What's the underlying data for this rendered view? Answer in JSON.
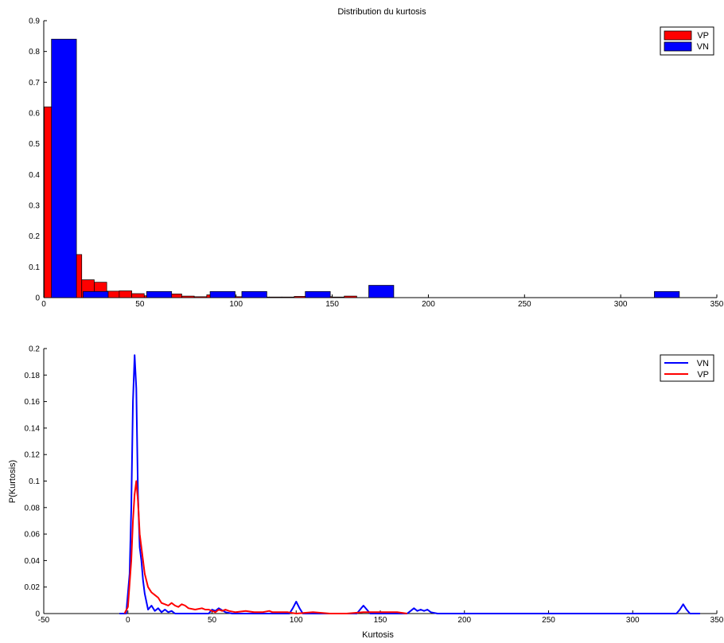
{
  "chart_data": [
    {
      "type": "bar",
      "title": "Distribution du kurtosis",
      "xlabel": "",
      "ylabel": "",
      "xlim": [
        0,
        350
      ],
      "ylim": [
        0,
        0.9
      ],
      "xticks": [
        0,
        50,
        100,
        150,
        200,
        250,
        300,
        350
      ],
      "yticks": [
        0,
        0.1,
        0.2,
        0.3,
        0.4,
        0.5,
        0.6,
        0.7,
        0.8,
        0.9
      ],
      "grid": false,
      "legend_position": "top-right",
      "series": [
        {
          "name": "VP",
          "color": "#ff0000",
          "bin_width": 6.5,
          "x": [
            3.5,
            10,
            16.5,
            23,
            29.5,
            36,
            42.5,
            49,
            55.5,
            62,
            68.5,
            75,
            81.5,
            88,
            94.5,
            101,
            107.5,
            114,
            120.5,
            127,
            133.5,
            140,
            146.5,
            153,
            159.5
          ],
          "values": [
            0.62,
            0.62,
            0.14,
            0.058,
            0.05,
            0.021,
            0.022,
            0.013,
            0.006,
            0.01,
            0.012,
            0.005,
            0.003,
            0.009,
            0.003,
            0.003,
            0.004,
            0.002,
            0.002,
            0.002,
            0.004,
            0.006,
            0.003,
            0.002,
            0.005
          ]
        },
        {
          "name": "VN",
          "color": "#0000ff",
          "bin_width": 13,
          "x": [
            10.5,
            27,
            43.5,
            60,
            76.5,
            93,
            109.5,
            126,
            142.5,
            159,
            175.5,
            192,
            208.5,
            225,
            241.5,
            258,
            274.5,
            291,
            307.5,
            324
          ],
          "values": [
            0.84,
            0.02,
            0,
            0.02,
            0,
            0.02,
            0.02,
            0,
            0.02,
            0,
            0.04,
            0,
            0,
            0,
            0,
            0,
            0,
            0,
            0,
            0.02
          ]
        }
      ]
    },
    {
      "type": "line",
      "title": "",
      "xlabel": "Kurtosis",
      "ylabel": "P(Kurtosis)",
      "xlim": [
        -50,
        350
      ],
      "ylim": [
        0,
        0.2
      ],
      "xticks": [
        -50,
        0,
        50,
        100,
        150,
        200,
        250,
        300,
        350
      ],
      "yticks": [
        0,
        0.02,
        0.04,
        0.06,
        0.08,
        0.1,
        0.12,
        0.14,
        0.16,
        0.18,
        0.2
      ],
      "grid": false,
      "legend_position": "top-right",
      "series": [
        {
          "name": "VN",
          "color": "#0000ff",
          "x": [
            -5,
            -1,
            1,
            2,
            3,
            4,
            5,
            6,
            7,
            8,
            9,
            10,
            12,
            14,
            16,
            18,
            20,
            22,
            24,
            26,
            28,
            30,
            40,
            48,
            50,
            52,
            54,
            58,
            62,
            70,
            96,
            98,
            100,
            102,
            104,
            136,
            138,
            140,
            142,
            144,
            166,
            168,
            170,
            172,
            174,
            176,
            178,
            180,
            184,
            200,
            250,
            300,
            326,
            328,
            330,
            332,
            334,
            336,
            340
          ],
          "values": [
            0,
            0,
            0.03,
            0.08,
            0.16,
            0.195,
            0.17,
            0.09,
            0.05,
            0.04,
            0.025,
            0.015,
            0.003,
            0.006,
            0.002,
            0.004,
            0.001,
            0.003,
            0.001,
            0.002,
            0,
            0,
            0,
            0,
            0.003,
            0.002,
            0.004,
            0.001,
            0,
            0,
            0,
            0.004,
            0.009,
            0.004,
            0,
            0,
            0.003,
            0.006,
            0.003,
            0,
            0,
            0.002,
            0.004,
            0.002,
            0.003,
            0.002,
            0.003,
            0.001,
            0,
            0,
            0,
            0,
            0,
            0.003,
            0.007,
            0.003,
            0,
            0,
            0
          ]
        },
        {
          "name": "VP",
          "color": "#ff0000",
          "x": [
            -2,
            0,
            2,
            3,
            4,
            5,
            6,
            7,
            8,
            9,
            10,
            11,
            12,
            14,
            16,
            18,
            20,
            22,
            24,
            26,
            28,
            30,
            32,
            34,
            36,
            40,
            44,
            46,
            48,
            50,
            52,
            54,
            56,
            58,
            60,
            64,
            70,
            75,
            80,
            84,
            86,
            88,
            90,
            95,
            100,
            110,
            120,
            130,
            140,
            150,
            160,
            166
          ],
          "values": [
            0,
            0.005,
            0.04,
            0.07,
            0.09,
            0.1,
            0.085,
            0.06,
            0.05,
            0.04,
            0.03,
            0.025,
            0.02,
            0.016,
            0.014,
            0.012,
            0.008,
            0.007,
            0.006,
            0.008,
            0.006,
            0.005,
            0.007,
            0.006,
            0.004,
            0.003,
            0.004,
            0.003,
            0.003,
            0.002,
            0.001,
            0.003,
            0.002,
            0.003,
            0.002,
            0.001,
            0.002,
            0.001,
            0.001,
            0.002,
            0.001,
            0.001,
            0.001,
            0.001,
            0,
            0.001,
            0,
            0,
            0.001,
            0.001,
            0.001,
            0
          ]
        }
      ]
    }
  ]
}
